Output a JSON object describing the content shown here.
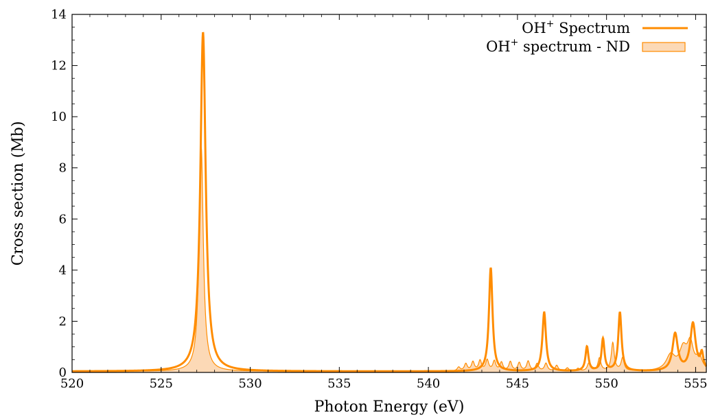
{
  "chart_data": {
    "type": "line",
    "xlabel": "Photon Energy (eV)",
    "ylabel": "Cross section (Mb)",
    "xlim": [
      520,
      555.6
    ],
    "ylim": [
      0,
      14
    ],
    "x_ticks": [
      520,
      525,
      530,
      535,
      540,
      545,
      550,
      555
    ],
    "y_ticks": [
      0,
      2,
      4,
      6,
      8,
      10,
      12,
      14
    ],
    "grid": false,
    "legend_position": "top-right",
    "series": [
      {
        "name": "OH+ Spectrum",
        "legend_base": "OH",
        "legend_sup": "+",
        "legend_rest": " Spectrum",
        "style": "line",
        "color": "#ff8c00",
        "baseline": 0.04,
        "peaks": [
          {
            "x": 527.35,
            "y": 13.25,
            "w": 0.18
          },
          {
            "x": 543.5,
            "y": 4.05,
            "w": 0.12
          },
          {
            "x": 546.5,
            "y": 2.3,
            "w": 0.12
          },
          {
            "x": 548.9,
            "y": 0.95,
            "w": 0.1
          },
          {
            "x": 549.8,
            "y": 1.25,
            "w": 0.1
          },
          {
            "x": 550.75,
            "y": 2.3,
            "w": 0.11
          },
          {
            "x": 553.85,
            "y": 1.45,
            "w": 0.18
          },
          {
            "x": 554.85,
            "y": 1.85,
            "w": 0.18
          },
          {
            "x": 555.35,
            "y": 0.6,
            "w": 0.1
          }
        ]
      },
      {
        "name": "OH+ spectrum - ND",
        "legend_base": "OH",
        "legend_sup": "+",
        "legend_rest": " spectrum - ND",
        "style": "filled-area",
        "color": "#ff8c00",
        "fill": "#fcd9b6",
        "baseline": 0.04,
        "peaks": [
          {
            "x": 527.25,
            "y": 8.8,
            "w": 0.14
          },
          {
            "x": 541.7,
            "y": 0.15,
            "w": 0.1
          },
          {
            "x": 542.1,
            "y": 0.28,
            "w": 0.1
          },
          {
            "x": 542.5,
            "y": 0.35,
            "w": 0.1
          },
          {
            "x": 542.9,
            "y": 0.4,
            "w": 0.1
          },
          {
            "x": 543.3,
            "y": 0.42,
            "w": 0.1
          },
          {
            "x": 543.7,
            "y": 0.38,
            "w": 0.1
          },
          {
            "x": 544.1,
            "y": 0.33,
            "w": 0.1
          },
          {
            "x": 544.6,
            "y": 0.36,
            "w": 0.1
          },
          {
            "x": 545.1,
            "y": 0.32,
            "w": 0.1
          },
          {
            "x": 545.6,
            "y": 0.38,
            "w": 0.1
          },
          {
            "x": 546.1,
            "y": 0.28,
            "w": 0.1
          },
          {
            "x": 546.6,
            "y": 0.3,
            "w": 0.1
          },
          {
            "x": 547.2,
            "y": 0.22,
            "w": 0.1
          },
          {
            "x": 547.8,
            "y": 0.12,
            "w": 0.1
          },
          {
            "x": 548.4,
            "y": 0.1,
            "w": 0.1
          },
          {
            "x": 549.0,
            "y": 0.3,
            "w": 0.1
          },
          {
            "x": 549.6,
            "y": 0.5,
            "w": 0.1
          },
          {
            "x": 550.35,
            "y": 1.1,
            "w": 0.1
          },
          {
            "x": 550.9,
            "y": 0.5,
            "w": 0.1
          },
          {
            "x": 553.6,
            "y": 0.6,
            "w": 0.3
          },
          {
            "x": 554.3,
            "y": 0.8,
            "w": 0.25
          },
          {
            "x": 554.7,
            "y": 1.0,
            "w": 0.2
          },
          {
            "x": 555.2,
            "y": 0.5,
            "w": 0.2
          }
        ]
      }
    ]
  }
}
